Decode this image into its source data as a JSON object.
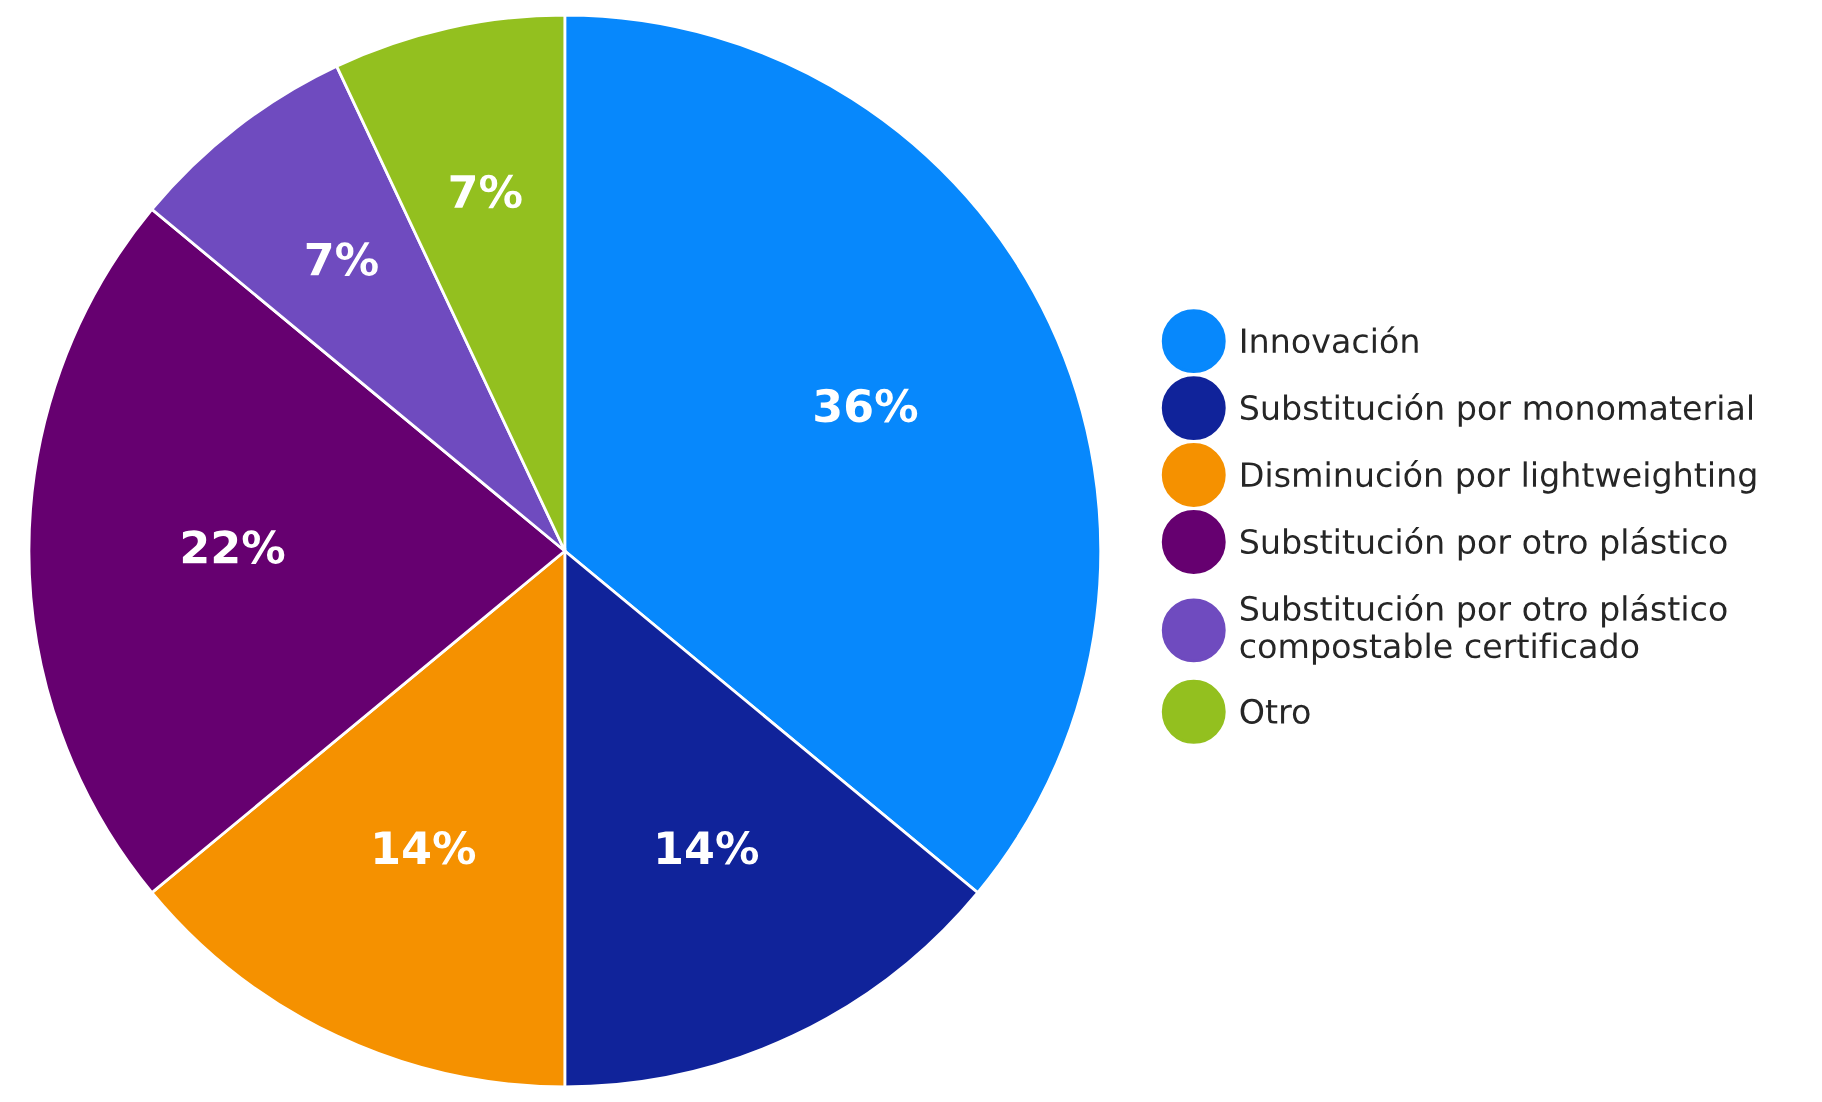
{
  "chart_data": {
    "type": "pie",
    "categories": [
      "Innovación",
      "Substitución por monomaterial",
      "Disminución por lightweighting",
      "Substitución por otro plástico",
      "Substitución por otro plástico\ncompostable certificado",
      "Otro"
    ],
    "values": [
      36,
      14,
      14,
      22,
      7,
      7
    ],
    "colors": [
      "#0788fc",
      "#10239a",
      "#f59100",
      "#660070",
      "#6f4bbf",
      "#93c01f"
    ],
    "value_labels": [
      "36%",
      "14%",
      "14%",
      "22%",
      "7%",
      "7%"
    ],
    "legend": "right"
  }
}
